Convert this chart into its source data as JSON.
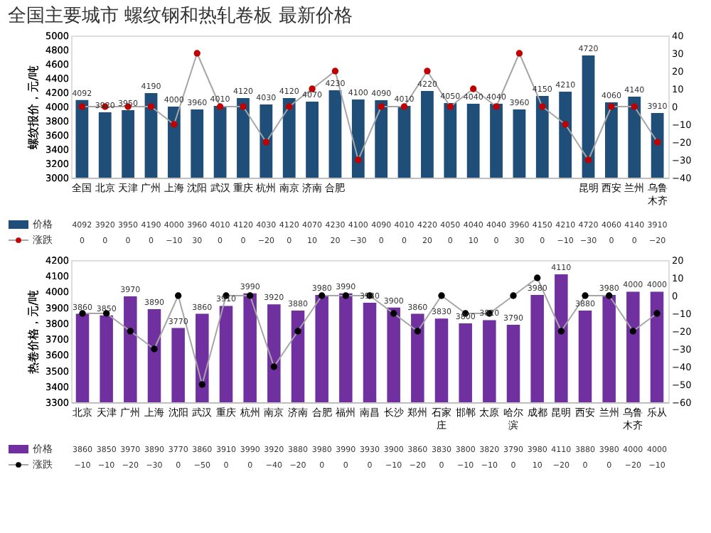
{
  "chart_data": [
    {
      "type": "bar",
      "title": "全国主要城市  螺纹钢和热轧卷板   最新价格",
      "ylabel": "螺纹报价，元/吨",
      "categories": [
        "全国",
        "北京",
        "天津",
        "广州",
        "上海",
        "沈阳",
        "武汉",
        "重庆",
        "杭州",
        "南京",
        "济南",
        "合肥",
        null,
        null,
        null,
        null,
        null,
        null,
        null,
        null,
        null,
        null,
        "昆明",
        "西安",
        "兰州",
        "乌鲁木齐"
      ],
      "series": [
        {
          "name": "价格",
          "color": "#1f4e79",
          "values": [
            4092,
            3920,
            3950,
            4190,
            4000,
            3960,
            4010,
            4120,
            4030,
            4120,
            4070,
            4230,
            4100,
            4090,
            4010,
            4220,
            4050,
            4040,
            4040,
            3960,
            4150,
            4210,
            4720,
            4060,
            4140,
            3910
          ],
          "value_labels": [
            "4092",
            "3920",
            "3950",
            "4190",
            "4000",
            "3960",
            "4010",
            "4120",
            "4030",
            "4120",
            "4070",
            "4230",
            "4100",
            "4090",
            "4010",
            "4220",
            "4050",
            "4040",
            "4040",
            "3960",
            "4150",
            "4210",
            "4720",
            "4060",
            "4140",
            "3910"
          ]
        },
        {
          "name": "涨跌",
          "type": "line",
          "axis": "y2",
          "color": "#a6a6a6",
          "colors": [
            "#c00000",
            "#c00000",
            "#c00000",
            "#c00000",
            "#c00000",
            "#c00000",
            "#c00000",
            "#c00000",
            "#c00000",
            "#c00000",
            "#c00000",
            "#c00000",
            "#c00000",
            "#c00000",
            "#c00000",
            "#c00000",
            "#c00000",
            "#c00000",
            "#c00000",
            "#c00000",
            "#c00000",
            "#c00000",
            "#c00000",
            "#c00000",
            "#c00000",
            "#c00000"
          ],
          "values": [
            0,
            0,
            0,
            0,
            -10,
            30,
            0,
            0,
            -20,
            0,
            10,
            20,
            -30,
            0,
            0,
            20,
            0,
            10,
            0,
            30,
            0,
            -10,
            -30,
            0,
            0,
            -20
          ]
        }
      ],
      "ylim": [
        3000,
        5000
      ],
      "yticks": [
        3000,
        3200,
        3400,
        3600,
        3800,
        4000,
        4200,
        4400,
        4600,
        4800,
        5000
      ],
      "y2lim": [
        -40,
        40
      ],
      "y2ticks": [
        -40,
        -30,
        -20,
        -10,
        0,
        10,
        20,
        30,
        40
      ],
      "data_labels": true,
      "legend": "bottom left",
      "marker": "circle",
      "line_style": "solid"
    },
    {
      "type": "bar",
      "ylabel": "热卷价格，元/吨",
      "categories": [
        "北京",
        "天津",
        "广州",
        "上海",
        "沈阳",
        "武汉",
        "重庆",
        "杭州",
        "南京",
        "济南",
        "合肥",
        "福州",
        "南昌",
        "长沙",
        "郑州",
        "石家庄",
        "邯郸",
        "太原",
        "哈尔滨",
        "成都",
        "昆明",
        "西安",
        "兰州",
        "乌鲁木齐",
        "乐从"
      ],
      "series": [
        {
          "name": "价格",
          "color": "#7030a0",
          "values": [
            3860,
            3850,
            3970,
            3890,
            3770,
            3860,
            3910,
            3990,
            3920,
            3880,
            3980,
            3990,
            3930,
            3900,
            3860,
            3830,
            3800,
            3820,
            3790,
            3980,
            4110,
            3880,
            3980,
            4000,
            4000
          ],
          "value_labels": [
            "3860",
            "3850",
            "3970",
            "3890",
            "3770",
            "3860",
            "3910",
            "3990",
            "3920",
            "3880",
            "3980",
            "3990",
            "3930",
            "3900",
            "3860",
            "3830",
            "3800",
            "3820",
            "3790",
            "3980",
            "4110",
            "3880",
            "3980",
            "4000",
            "4000"
          ]
        },
        {
          "name": "涨跌",
          "type": "line",
          "axis": "y2",
          "color": "#a6a6a6",
          "colors": [
            "#000000",
            "#000000",
            "#000000",
            "#000000",
            "#000000",
            "#000000",
            "#000000",
            "#000000",
            "#000000",
            "#000000",
            "#000000",
            "#000000",
            "#000000",
            "#000000",
            "#000000",
            "#000000",
            "#000000",
            "#000000",
            "#000000",
            "#000000",
            "#000000",
            "#000000",
            "#000000",
            "#000000",
            "#000000"
          ],
          "values": [
            -10,
            -10,
            -20,
            -30,
            0,
            -50,
            0,
            0,
            -40,
            -20,
            0,
            0,
            0,
            -10,
            -20,
            0,
            -10,
            -10,
            0,
            10,
            -20,
            0,
            0,
            -20,
            -10
          ]
        }
      ],
      "ylim": [
        3300,
        4200
      ],
      "yticks": [
        3300,
        3400,
        3500,
        3600,
        3700,
        3800,
        3900,
        4000,
        4100,
        4200
      ],
      "y2lim": [
        -60,
        20
      ],
      "y2ticks": [
        -60,
        -50,
        -40,
        -30,
        -20,
        -10,
        0,
        10,
        20
      ],
      "data_labels": true,
      "legend": "bottom left",
      "marker": "circle",
      "line_style": "solid"
    }
  ]
}
